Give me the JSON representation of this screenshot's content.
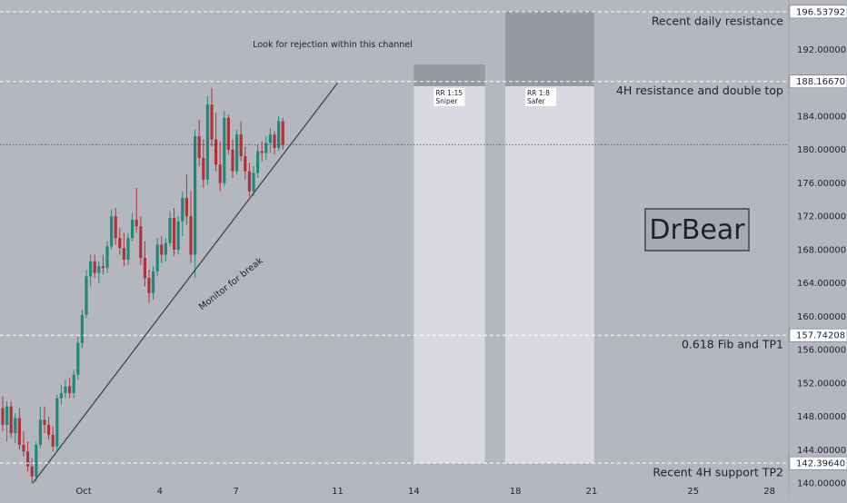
{
  "chart_data": {
    "type": "candlestick",
    "colors": {
      "background": "#b4b7bd",
      "up_candle": "#1f8a7a",
      "down_candle": "#b0323a",
      "trendline": "#3d4450",
      "level_line": "#ffffff",
      "dotted_line": "#3d4450",
      "zone_light": "#e3e4e7",
      "zone_dark": "#8c8f96",
      "axis_panel": "#b4b7bd",
      "watermark_border": "#5a606b"
    },
    "y_axis": {
      "min": 139.8,
      "max": 197.5,
      "ticks": [
        "140.00000",
        "144.00000",
        "148.00000",
        "152.00000",
        "156.00000",
        "160.00000",
        "164.00000",
        "168.00000",
        "172.00000",
        "176.00000",
        "180.00000",
        "184.00000",
        "188.00000",
        "192.00000"
      ],
      "position": "right"
    },
    "x_axis": {
      "labels": [
        {
          "text": "Oct",
          "day": 0
        },
        {
          "text": "4",
          "day": 3
        },
        {
          "text": "7",
          "day": 6
        },
        {
          "text": "11",
          "day": 10
        },
        {
          "text": "14",
          "day": 13
        },
        {
          "text": "18",
          "day": 17
        },
        {
          "text": "21",
          "day": 20
        },
        {
          "text": "25",
          "day": 24
        },
        {
          "text": "28",
          "day": 27
        }
      ]
    },
    "levels": [
      {
        "value": 196.53792,
        "price_label": "196.53792",
        "note": "Recent daily resistance"
      },
      {
        "value": 188.1667,
        "price_label": "188.16670",
        "note": "4H resistance and double top"
      },
      {
        "value": 157.74208,
        "price_label": "157.74208",
        "note": "0.618 Fib and TP1"
      },
      {
        "value": 142.3964,
        "price_label": "142.39640",
        "note": "Recent 4H support TP2"
      }
    ],
    "current_price": 180.6,
    "annotations": {
      "channel_note": "Look for rejection within this channel",
      "trend_note": "Monitor for break",
      "watermark": "DrBear"
    },
    "trendline": {
      "start": {
        "day": -2,
        "price": 140.0
      },
      "end": {
        "day": 10,
        "price": 188.0
      }
    },
    "zones": [
      {
        "name": "sniper",
        "label_line1": "RR 1:15",
        "label_line2": "Sniper",
        "day_start": 13.0,
        "day_end": 15.8,
        "stop_top": 190.2,
        "entry": 187.6,
        "target": 142.4
      },
      {
        "name": "safer",
        "label_line1": "RR 1:8",
        "label_line2": "Safer",
        "day_start": 16.6,
        "day_end": 20.1,
        "stop_top": 196.6,
        "entry": 187.6,
        "target": 142.4
      }
    ],
    "candles": [
      {
        "o": 149.0,
        "h": 150.4,
        "l": 146.2,
        "c": 147.0
      },
      {
        "o": 147.0,
        "h": 149.8,
        "l": 145.0,
        "c": 149.2
      },
      {
        "o": 149.2,
        "h": 149.8,
        "l": 145.4,
        "c": 146.0
      },
      {
        "o": 146.0,
        "h": 148.4,
        "l": 144.8,
        "c": 147.8
      },
      {
        "o": 147.8,
        "h": 149.0,
        "l": 144.0,
        "c": 144.6
      },
      {
        "o": 144.6,
        "h": 146.2,
        "l": 143.2,
        "c": 143.8
      },
      {
        "o": 143.8,
        "h": 145.0,
        "l": 141.4,
        "c": 142.0
      },
      {
        "o": 142.0,
        "h": 143.0,
        "l": 140.0,
        "c": 140.8
      },
      {
        "o": 140.8,
        "h": 145.0,
        "l": 140.2,
        "c": 144.6
      },
      {
        "o": 144.6,
        "h": 149.2,
        "l": 144.2,
        "c": 147.6
      },
      {
        "o": 147.6,
        "h": 149.2,
        "l": 146.0,
        "c": 147.0
      },
      {
        "o": 147.0,
        "h": 148.0,
        "l": 145.2,
        "c": 145.8
      },
      {
        "o": 145.8,
        "h": 146.8,
        "l": 143.8,
        "c": 144.4
      },
      {
        "o": 144.4,
        "h": 150.6,
        "l": 144.0,
        "c": 150.2
      },
      {
        "o": 150.2,
        "h": 151.8,
        "l": 149.4,
        "c": 150.8
      },
      {
        "o": 150.8,
        "h": 152.4,
        "l": 150.2,
        "c": 151.6
      },
      {
        "o": 151.6,
        "h": 152.6,
        "l": 150.2,
        "c": 150.8
      },
      {
        "o": 150.8,
        "h": 153.6,
        "l": 150.2,
        "c": 153.0
      },
      {
        "o": 153.0,
        "h": 157.6,
        "l": 152.4,
        "c": 156.8
      },
      {
        "o": 156.8,
        "h": 160.8,
        "l": 156.2,
        "c": 160.2
      },
      {
        "o": 160.2,
        "h": 165.6,
        "l": 159.8,
        "c": 164.8
      },
      {
        "o": 164.8,
        "h": 167.4,
        "l": 163.6,
        "c": 166.6
      },
      {
        "o": 166.6,
        "h": 167.4,
        "l": 164.6,
        "c": 165.2
      },
      {
        "o": 165.2,
        "h": 166.6,
        "l": 164.0,
        "c": 166.0
      },
      {
        "o": 166.0,
        "h": 167.4,
        "l": 165.0,
        "c": 165.8
      },
      {
        "o": 165.8,
        "h": 169.0,
        "l": 165.2,
        "c": 168.4
      },
      {
        "o": 168.4,
        "h": 172.8,
        "l": 168.0,
        "c": 172.0
      },
      {
        "o": 172.0,
        "h": 173.0,
        "l": 168.6,
        "c": 169.4
      },
      {
        "o": 169.4,
        "h": 170.6,
        "l": 167.4,
        "c": 168.2
      },
      {
        "o": 168.2,
        "h": 170.0,
        "l": 166.0,
        "c": 166.8
      },
      {
        "o": 166.8,
        "h": 170.0,
        "l": 166.2,
        "c": 169.4
      },
      {
        "o": 169.4,
        "h": 172.4,
        "l": 169.0,
        "c": 171.6
      },
      {
        "o": 171.6,
        "h": 175.4,
        "l": 170.0,
        "c": 170.8
      },
      {
        "o": 170.8,
        "h": 172.0,
        "l": 166.2,
        "c": 167.0
      },
      {
        "o": 167.0,
        "h": 169.0,
        "l": 163.6,
        "c": 164.6
      },
      {
        "o": 164.6,
        "h": 165.6,
        "l": 161.6,
        "c": 162.8
      },
      {
        "o": 162.8,
        "h": 166.0,
        "l": 162.0,
        "c": 165.4
      },
      {
        "o": 165.4,
        "h": 169.4,
        "l": 164.8,
        "c": 168.6
      },
      {
        "o": 168.6,
        "h": 169.6,
        "l": 166.4,
        "c": 167.4
      },
      {
        "o": 167.4,
        "h": 169.4,
        "l": 166.6,
        "c": 168.8
      },
      {
        "o": 168.8,
        "h": 172.6,
        "l": 168.4,
        "c": 171.8
      },
      {
        "o": 171.8,
        "h": 173.0,
        "l": 167.2,
        "c": 168.0
      },
      {
        "o": 168.0,
        "h": 172.0,
        "l": 167.4,
        "c": 171.4
      },
      {
        "o": 171.4,
        "h": 175.0,
        "l": 169.6,
        "c": 174.2
      },
      {
        "o": 174.2,
        "h": 177.0,
        "l": 171.0,
        "c": 172.0
      },
      {
        "o": 172.0,
        "h": 175.0,
        "l": 166.4,
        "c": 167.4
      },
      {
        "o": 167.4,
        "h": 182.4,
        "l": 164.6,
        "c": 181.6
      },
      {
        "o": 181.6,
        "h": 183.6,
        "l": 178.0,
        "c": 179.0
      },
      {
        "o": 179.0,
        "h": 181.2,
        "l": 175.4,
        "c": 176.4
      },
      {
        "o": 176.4,
        "h": 186.4,
        "l": 175.8,
        "c": 185.4
      },
      {
        "o": 185.4,
        "h": 187.4,
        "l": 180.4,
        "c": 181.2
      },
      {
        "o": 181.2,
        "h": 184.4,
        "l": 177.4,
        "c": 178.2
      },
      {
        "o": 178.2,
        "h": 181.0,
        "l": 175.0,
        "c": 176.0
      },
      {
        "o": 176.0,
        "h": 184.6,
        "l": 175.6,
        "c": 183.8
      },
      {
        "o": 183.8,
        "h": 184.2,
        "l": 179.4,
        "c": 180.0
      },
      {
        "o": 180.0,
        "h": 181.2,
        "l": 176.6,
        "c": 177.4
      },
      {
        "o": 177.4,
        "h": 182.4,
        "l": 177.0,
        "c": 181.8
      },
      {
        "o": 181.8,
        "h": 183.4,
        "l": 178.6,
        "c": 179.2
      },
      {
        "o": 179.2,
        "h": 180.4,
        "l": 176.4,
        "c": 177.4
      },
      {
        "o": 177.4,
        "h": 178.4,
        "l": 174.4,
        "c": 175.0
      },
      {
        "o": 175.0,
        "h": 178.0,
        "l": 174.4,
        "c": 177.2
      },
      {
        "o": 177.2,
        "h": 180.6,
        "l": 176.6,
        "c": 179.8
      },
      {
        "o": 179.8,
        "h": 181.0,
        "l": 178.6,
        "c": 179.6
      },
      {
        "o": 179.6,
        "h": 181.6,
        "l": 178.8,
        "c": 180.8
      },
      {
        "o": 180.8,
        "h": 182.6,
        "l": 179.6,
        "c": 181.8
      },
      {
        "o": 181.8,
        "h": 182.2,
        "l": 179.4,
        "c": 180.2
      },
      {
        "o": 180.2,
        "h": 184.0,
        "l": 179.8,
        "c": 183.4
      },
      {
        "o": 183.4,
        "h": 183.8,
        "l": 180.0,
        "c": 180.6
      }
    ]
  }
}
